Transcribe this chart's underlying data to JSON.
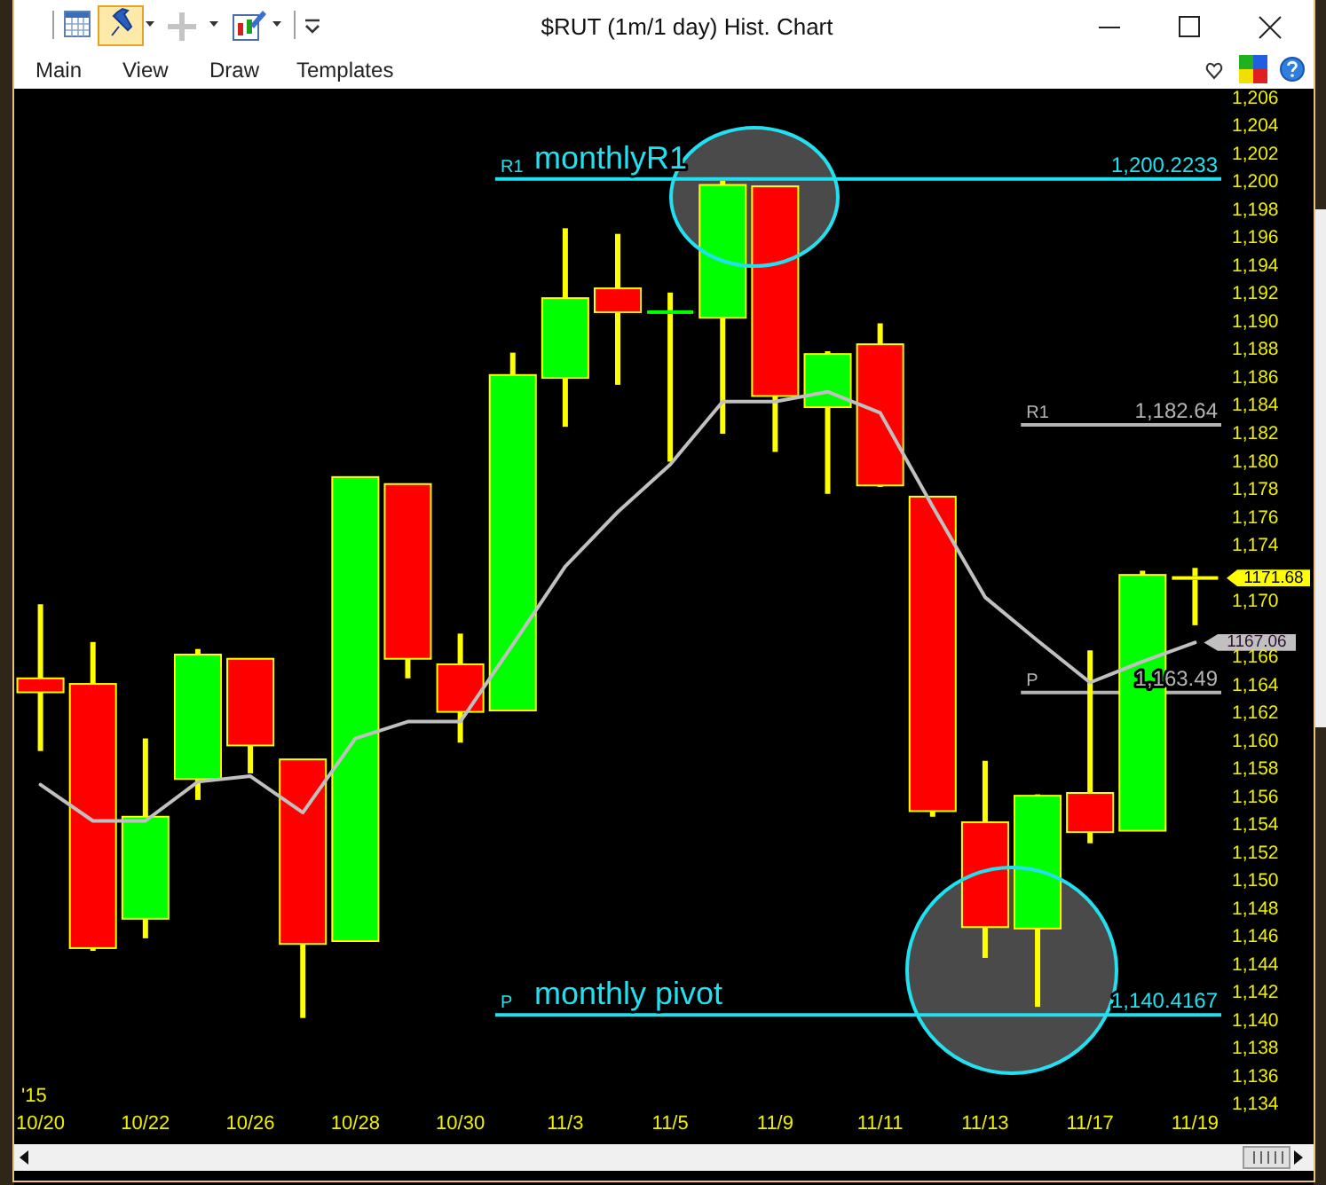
{
  "chart_data": {
    "type": "candlestick",
    "title": "$RUT (1m/1 day) Hist. Chart",
    "xlabel": "'15",
    "categories": [
      "10/20",
      null,
      "10/22",
      null,
      "10/26",
      null,
      "10/28",
      null,
      "10/30",
      null,
      "11/3",
      null,
      "11/5",
      null,
      "11/9",
      null,
      "11/11",
      null,
      "11/13",
      null,
      "11/17",
      null,
      "11/19"
    ],
    "ohlc": [
      [
        1164.5,
        1169.8,
        1159.3,
        1163.5
      ],
      [
        1164.1,
        1167.1,
        1145.0,
        1145.2
      ],
      [
        1147.3,
        1160.2,
        1145.9,
        1154.6
      ],
      [
        1157.3,
        1166.6,
        1155.8,
        1166.2
      ],
      [
        1165.9,
        1165.9,
        1157.7,
        1159.7
      ],
      [
        1158.7,
        1158.7,
        1140.2,
        1145.5
      ],
      [
        1145.7,
        1178.9,
        1145.7,
        1178.9
      ],
      [
        1178.4,
        1178.4,
        1164.5,
        1165.9
      ],
      [
        1165.5,
        1167.7,
        1159.9,
        1162.1
      ],
      [
        1162.2,
        1187.8,
        1162.2,
        1186.2
      ],
      [
        1186.0,
        1196.7,
        1182.5,
        1191.7
      ],
      [
        1192.4,
        1196.3,
        1185.5,
        1190.7
      ],
      [
        1190.6,
        1192.1,
        1180.0,
        1190.8
      ],
      [
        1190.3,
        1200.1,
        1182.0,
        1199.8
      ],
      [
        1199.7,
        1199.7,
        1180.7,
        1184.7
      ],
      [
        1183.9,
        1187.9,
        1177.7,
        1187.7
      ],
      [
        1188.4,
        1189.9,
        1178.2,
        1178.3
      ],
      [
        1177.5,
        1177.5,
        1154.6,
        1155.0
      ],
      [
        1154.2,
        1158.6,
        1144.5,
        1146.7
      ],
      [
        1146.6,
        1156.2,
        1141.0,
        1156.1
      ],
      [
        1156.3,
        1166.5,
        1152.7,
        1153.5
      ],
      [
        1153.6,
        1172.2,
        1153.6,
        1171.9
      ],
      [
        1171.68,
        1172.4,
        1168.3,
        1171.68
      ]
    ],
    "color": "#ffff00",
    "colors": [
      "#ff0000",
      "#ff0000",
      "#00ff00",
      "#00ff00",
      "#ff0000",
      "#ff0000",
      "#00ff00",
      "#ff0000",
      "#ff0000",
      "#00ff00",
      "#00ff00",
      "#ff0000",
      "#00ff00",
      "#00ff00",
      "#ff0000",
      "#00ff00",
      "#ff0000",
      "#ff0000",
      "#ff0000",
      "#00ff00",
      "#ff0000",
      "#00ff00",
      "#ffff00"
    ],
    "value_labels": [
      null,
      null,
      null,
      null,
      null,
      null,
      null,
      null,
      null,
      null,
      null,
      null,
      null,
      null,
      null,
      null,
      null,
      null,
      null,
      null,
      null,
      null,
      "1171.68"
    ],
    "series": [
      {
        "type": "line",
        "color": "#c0c0c0",
        "values": [
          1156.9,
          1154.3,
          1154.3,
          1157.1,
          1157.5,
          1154.9,
          1160.2,
          1161.4,
          1161.4,
          1166.9,
          1172.5,
          1176.4,
          1179.8,
          1184.3,
          1184.3,
          1185.0,
          1183.5,
          1176.8,
          1170.3,
          1167.2,
          1164.2,
          1165.7,
          1167.06
        ],
        "value_labels": [
          null,
          null,
          null,
          null,
          null,
          null,
          null,
          null,
          null,
          null,
          null,
          null,
          null,
          null,
          null,
          null,
          null,
          null,
          null,
          null,
          null,
          null,
          "1167.06"
        ]
      }
    ],
    "ylim": [
      1134,
      1206
    ],
    "yticks": [
      {
        "value": 1134,
        "label": "1,134"
      },
      {
        "value": 1136,
        "label": "1,136"
      },
      {
        "value": 1138,
        "label": "1,138"
      },
      {
        "value": 1140,
        "label": "1,140"
      },
      {
        "value": 1142,
        "label": "1,142"
      },
      {
        "value": 1144,
        "label": "1,144"
      },
      {
        "value": 1146,
        "label": "1,146"
      },
      {
        "value": 1148,
        "label": "1,148"
      },
      {
        "value": 1150,
        "label": "1,150"
      },
      {
        "value": 1152,
        "label": "1,152"
      },
      {
        "value": 1154,
        "label": "1,154"
      },
      {
        "value": 1156,
        "label": "1,156"
      },
      {
        "value": 1158,
        "label": "1,158"
      },
      {
        "value": 1160,
        "label": "1,160"
      },
      {
        "value": 1162,
        "label": "1,162"
      },
      {
        "value": 1164,
        "label": "1,164"
      },
      {
        "value": 1166,
        "label": "1,166"
      },
      {
        "value": 1170,
        "label": "1,170"
      },
      {
        "value": 1174,
        "label": "1,174"
      },
      {
        "value": 1176,
        "label": "1,176"
      },
      {
        "value": 1178,
        "label": "1,178"
      },
      {
        "value": 1180,
        "label": "1,180"
      },
      {
        "value": 1182,
        "label": "1,182"
      },
      {
        "value": 1184,
        "label": "1,184"
      },
      {
        "value": 1186,
        "label": "1,186"
      },
      {
        "value": 1188,
        "label": "1,188"
      },
      {
        "value": 1190,
        "label": "1,190"
      },
      {
        "value": 1192,
        "label": "1,192"
      },
      {
        "value": 1194,
        "label": "1,194"
      },
      {
        "value": 1196,
        "label": "1,196"
      },
      {
        "value": 1198,
        "label": "1,198"
      },
      {
        "value": 1200,
        "label": "1,200"
      },
      {
        "value": 1202,
        "label": "1,202"
      },
      {
        "value": 1204,
        "label": "1,204"
      },
      {
        "value": 1206,
        "label": "1,206"
      }
    ],
    "ref_lines": [
      {
        "axis": "y",
        "value": 1200.2233,
        "label": "R1",
        "color": "#22e0f0"
      },
      {
        "axis": "y",
        "value": 1140.4167,
        "label": "P",
        "color": "#22e0f0"
      },
      {
        "axis": "y",
        "value": 1182.64,
        "label": "R1",
        "color": "#b4b4b4"
      },
      {
        "axis": "y",
        "value": 1163.49,
        "label": "P",
        "color": "#b4b4b4"
      }
    ],
    "annotations": [
      {
        "text": "monthlyR1",
        "y": 1200.2233
      },
      {
        "text": "1,200.2233",
        "y": 1200.2233
      },
      {
        "text": "monthly pivot",
        "y": 1140.4167
      },
      {
        "text": "1,140.4167",
        "y": 1140.4167
      },
      {
        "text": "1,182.64",
        "y": 1182.64
      },
      {
        "text": "1,163.49",
        "y": 1163.49
      },
      "Main",
      "View",
      "Draw",
      "Templates"
    ]
  }
}
